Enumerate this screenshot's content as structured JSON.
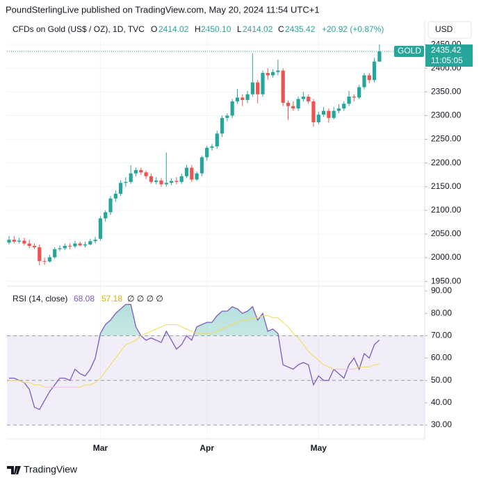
{
  "header": {
    "attribution": "PoundSterlingLive published on TradingView.com, May 20, 2024 11:54 UTC+1",
    "symbol": "CFDs on Gold (US$ / OZ), 1D, TVC",
    "o_label": "O",
    "o_value": "2414.02",
    "h_label": "H",
    "h_value": "2450.10",
    "l_label": "L",
    "l_value": "2414.02",
    "c_label": "C",
    "c_value": "2435.42",
    "change": "+20.92 (+0.87%)",
    "currency": "USD",
    "price_tag": {
      "symbol": "GOLD",
      "price": "2435.42",
      "countdown": "11:05:05"
    },
    "brand": "TradingView"
  },
  "chart_data": [
    {
      "type": "candlestick",
      "up_color": "#26a69a",
      "down_color": "#ef5350",
      "grid": true,
      "categories": [
        null,
        null,
        null,
        null,
        null,
        null,
        null,
        null,
        null,
        null,
        null,
        null,
        null,
        null,
        null,
        null,
        null,
        null,
        "Mar",
        null,
        null,
        null,
        null,
        null,
        null,
        null,
        null,
        null,
        null,
        null,
        null,
        null,
        null,
        null,
        null,
        null,
        null,
        null,
        null,
        "Apr",
        null,
        null,
        null,
        null,
        null,
        null,
        null,
        null,
        null,
        null,
        null,
        null,
        null,
        null,
        null,
        null,
        null,
        null,
        null,
        null,
        null,
        "May",
        null,
        null,
        null,
        null,
        null,
        null,
        null,
        null,
        null,
        null,
        null,
        null
      ],
      "open": [
        2032,
        2038,
        2034,
        2036,
        2030,
        2025,
        2022,
        1993,
        1992,
        2001,
        2018,
        2020,
        2025,
        2024,
        2030,
        2026,
        2028,
        2035,
        2040,
        2083,
        2096,
        2125,
        2135,
        2158,
        2160,
        2178,
        2185,
        2180,
        2172,
        2160,
        2163,
        2155,
        2158,
        2162,
        2160,
        2172,
        2190,
        2165,
        2178,
        2212,
        2232,
        2235,
        2262,
        2295,
        2300,
        2330,
        2338,
        2333,
        2345,
        2370,
        2345,
        2390,
        2385,
        2392,
        2395,
        2327,
        2320,
        2315,
        2335,
        2340,
        2330,
        2286,
        2302,
        2310,
        2295,
        2310,
        2315,
        2325,
        2340,
        2338,
        2360,
        2385,
        2375,
        2414.02
      ],
      "high": [
        2046,
        2046,
        2042,
        2042,
        2038,
        2030,
        2028,
        2000,
        2006,
        2022,
        2026,
        2030,
        2030,
        2036,
        2034,
        2034,
        2040,
        2044,
        2088,
        2100,
        2130,
        2142,
        2164,
        2170,
        2195,
        2190,
        2190,
        2184,
        2178,
        2170,
        2168,
        2222,
        2168,
        2170,
        2178,
        2196,
        2196,
        2182,
        2215,
        2236,
        2240,
        2268,
        2300,
        2305,
        2335,
        2356,
        2345,
        2352,
        2431,
        2375,
        2395,
        2400,
        2398,
        2418,
        2400,
        2332,
        2330,
        2340,
        2350,
        2345,
        2335,
        2308,
        2318,
        2315,
        2318,
        2324,
        2330,
        2352,
        2345,
        2365,
        2390,
        2390,
        2422,
        2450.1
      ],
      "low": [
        2028,
        2030,
        2030,
        2026,
        2020,
        2018,
        1984,
        1985,
        1990,
        1998,
        2014,
        2016,
        2018,
        2020,
        2024,
        2022,
        2026,
        2030,
        2036,
        2076,
        2090,
        2118,
        2130,
        2150,
        2156,
        2172,
        2175,
        2166,
        2156,
        2155,
        2150,
        2150,
        2153,
        2155,
        2156,
        2168,
        2160,
        2162,
        2172,
        2205,
        2226,
        2230,
        2255,
        2288,
        2295,
        2325,
        2320,
        2326,
        2340,
        2326,
        2340,
        2376,
        2380,
        2385,
        2320,
        2291,
        2310,
        2310,
        2330,
        2325,
        2277,
        2282,
        2298,
        2285,
        2292,
        2305,
        2310,
        2320,
        2330,
        2335,
        2355,
        2368,
        2370,
        2414.02
      ],
      "close": [
        2038,
        2034,
        2036,
        2030,
        2025,
        2022,
        1993,
        1992,
        2001,
        2018,
        2020,
        2025,
        2024,
        2030,
        2026,
        2028,
        2035,
        2038,
        2083,
        2096,
        2125,
        2135,
        2158,
        2160,
        2178,
        2185,
        2180,
        2172,
        2160,
        2163,
        2155,
        2158,
        2162,
        2160,
        2172,
        2190,
        2165,
        2178,
        2212,
        2232,
        2235,
        2262,
        2295,
        2300,
        2330,
        2338,
        2333,
        2345,
        2370,
        2345,
        2390,
        2385,
        2392,
        2395,
        2327,
        2320,
        2315,
        2335,
        2340,
        2330,
        2286,
        2302,
        2310,
        2295,
        2310,
        2315,
        2325,
        2340,
        2338,
        2360,
        2385,
        2375,
        2414.02,
        2435.42
      ],
      "ylim": [
        1940,
        2500
      ],
      "yticks": [
        {
          "value": 1950,
          "label": "1950.00"
        },
        {
          "value": 2000,
          "label": "2000.00"
        },
        {
          "value": 2050,
          "label": "2050.00"
        },
        {
          "value": 2100,
          "label": "2100.00"
        },
        {
          "value": 2150,
          "label": "2150.00"
        },
        {
          "value": 2200,
          "label": "2200.00"
        },
        {
          "value": 2250,
          "label": "2250.00"
        },
        {
          "value": 2300,
          "label": "2300.00"
        },
        {
          "value": 2350,
          "label": "2350.00"
        },
        {
          "value": 2400,
          "label": "2400.00"
        },
        {
          "value": 2450,
          "label": "2450.00"
        }
      ]
    },
    {
      "type": "line",
      "title": "RSI (14, close)",
      "extra_legend": "∅ ∅ ∅ ∅",
      "band_color": "#7e57c2",
      "series": [
        {
          "color": "#7e57c2",
          "values": [
            51,
            51,
            50,
            49,
            46,
            38,
            37,
            41,
            45,
            48,
            51,
            51,
            50,
            55,
            53,
            52,
            55,
            60,
            71,
            75,
            77,
            80,
            82,
            84,
            84,
            74,
            70,
            68,
            69,
            68,
            67,
            72,
            68,
            64,
            66,
            70,
            68,
            74,
            75,
            76,
            76,
            79,
            81,
            81,
            83,
            82,
            80,
            81,
            83,
            77,
            80,
            72,
            73,
            71,
            57,
            56,
            55,
            57,
            58,
            57,
            48,
            52,
            50,
            50,
            55,
            53,
            51,
            57,
            60,
            55,
            62,
            60,
            66,
            68.08
          ]
        },
        {
          "color": "#f5d94a",
          "values": [
            50,
            50,
            50,
            49,
            49,
            48,
            48,
            47,
            47,
            47,
            47,
            47,
            47,
            47,
            47,
            48,
            48,
            49,
            51,
            54,
            57,
            60,
            63,
            66,
            67,
            68,
            70,
            71,
            72,
            73,
            74,
            75,
            75,
            75,
            74,
            73,
            72,
            71,
            71,
            71,
            71,
            72,
            73,
            74,
            75,
            76,
            77,
            77,
            78,
            78,
            79,
            79,
            78,
            78,
            76,
            74,
            71,
            69,
            66,
            63,
            61,
            59,
            57,
            56,
            55,
            55,
            55,
            55,
            55,
            56,
            56,
            56,
            57,
            57.18
          ]
        }
      ],
      "hlines": [
        70,
        50,
        30
      ],
      "ylim": [
        23.8,
        92.2
      ],
      "yticks": [
        {
          "value": 30,
          "label": "30.00"
        },
        {
          "value": 40,
          "label": "40.00"
        },
        {
          "value": 50,
          "label": "50.00"
        },
        {
          "value": 60,
          "label": "60.00"
        },
        {
          "value": 70,
          "label": "70.00"
        },
        {
          "value": 80,
          "label": "80.00"
        },
        {
          "value": 90,
          "label": "90.00"
        }
      ]
    }
  ]
}
